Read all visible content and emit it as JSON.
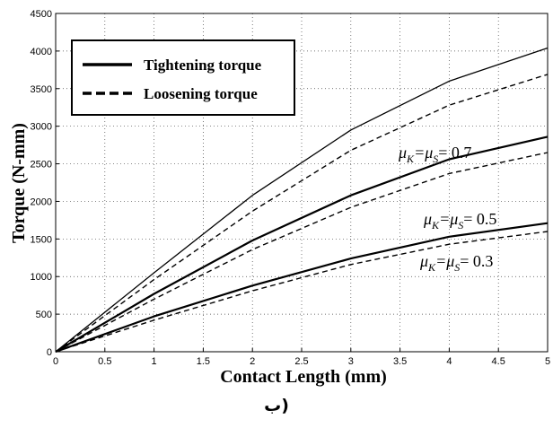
{
  "chart_data": {
    "type": "line",
    "xlabel": "Contact Length (mm)",
    "ylabel": "Torque (N-mm)",
    "xlim": [
      0,
      5
    ],
    "ylim": [
      0,
      4500
    ],
    "x_ticks": [
      "0",
      "0.5",
      "1",
      "1.5",
      "2",
      "2.5",
      "3",
      "3.5",
      "4",
      "4.5",
      "5"
    ],
    "y_ticks": [
      "0",
      "500",
      "1000",
      "1500",
      "2000",
      "2500",
      "3000",
      "3500",
      "4000",
      "4500"
    ],
    "grid": true,
    "legend_position": "top-left",
    "legend": {
      "solid": "Tightening torque",
      "dashed": "Loosening torque"
    },
    "x": [
      0,
      1,
      2,
      3,
      4,
      5
    ],
    "series": [
      {
        "style": "solid",
        "group": "0.7",
        "values": [
          0,
          1050,
          2080,
          2950,
          3600,
          4040
        ]
      },
      {
        "style": "dashed",
        "group": "0.7",
        "values": [
          0,
          960,
          1870,
          2680,
          3280,
          3690
        ]
      },
      {
        "style": "solid",
        "group": "0.5",
        "values": [
          0,
          770,
          1480,
          2080,
          2560,
          2860
        ]
      },
      {
        "style": "dashed",
        "group": "0.5",
        "values": [
          0,
          700,
          1360,
          1920,
          2370,
          2650
        ]
      },
      {
        "style": "solid",
        "group": "0.3",
        "values": [
          0,
          470,
          880,
          1240,
          1530,
          1710
        ]
      },
      {
        "style": "dashed",
        "group": "0.3",
        "values": [
          0,
          420,
          810,
          1160,
          1430,
          1600
        ]
      }
    ],
    "annotations": [
      {
        "prefix": "μ",
        "sub1": "K",
        "mid": "=μ",
        "sub2": "S",
        "suffix": "=  0.7"
      },
      {
        "prefix": "μ",
        "sub1": "K",
        "mid": "=μ",
        "sub2": "S",
        "suffix": "= 0.5"
      },
      {
        "prefix": "μ",
        "sub1": "K",
        "mid": "=μ",
        "sub2": "S",
        "suffix": "= 0.3"
      }
    ]
  },
  "caption": "ب)"
}
